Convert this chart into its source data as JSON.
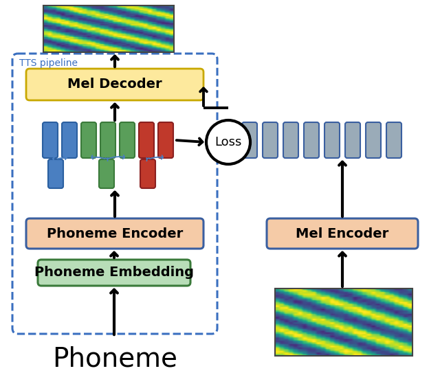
{
  "title": "Phoneme",
  "tts_pipeline_label": "TTS pipeline",
  "mel_decoder_label": "Mel Decoder",
  "phoneme_encoder_label": "Phoneme Encoder",
  "phoneme_embedding_label": "Phoneme Embedding",
  "mel_encoder_label": "Mel Encoder",
  "loss_label": "Loss",
  "bg_color": "#ffffff",
  "mel_decoder_box_color": "#fde99d",
  "mel_decoder_box_edge": "#c8a800",
  "phoneme_encoder_box_color": "#f5cba7",
  "phoneme_encoder_box_edge": "#3a5fa0",
  "phoneme_embedding_box_color": "#b8ddb8",
  "phoneme_embedding_box_edge": "#3a7a3a",
  "mel_encoder_box_color": "#f5cba7",
  "mel_encoder_box_edge": "#3a5fa0",
  "dashed_box_color": "#3a6fc0",
  "blue_bar_color": "#4a7fc1",
  "blue_bar_edge": "#2a5fa0",
  "green_bar_color": "#5a9e5a",
  "green_bar_edge": "#3a7a3a",
  "red_bar_color": "#c0392b",
  "red_bar_edge": "#8a2020",
  "gray_bar_color": "#9aabb8",
  "gray_bar_edge": "#3a5fa0",
  "loss_circle_color": "#ffffff",
  "loss_circle_edge": "#000000",
  "arrow_color": "#000000",
  "blue_arrow_color": "#4a7fc1",
  "title_fontsize": 28,
  "label_fontsize": 14,
  "tts_label_fontsize": 10
}
